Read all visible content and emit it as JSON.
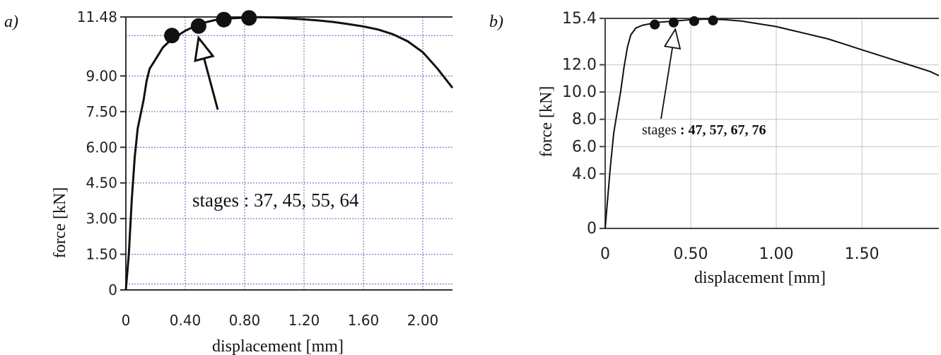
{
  "chart_data": [
    {
      "panel_label": "a)",
      "type": "line",
      "xlabel": "displacement [mm]",
      "ylabel": "force [kN]",
      "xlim": [
        0,
        2.2
      ],
      "ylim": [
        0,
        11.48
      ],
      "x_ticks": [
        "0",
        "0.40",
        "0.80",
        "1.20",
        "1.60",
        "2.00"
      ],
      "x_tick_values": [
        0,
        0.4,
        0.8,
        1.2,
        1.6,
        2.0
      ],
      "y_ticks": [
        "0",
        "1.50",
        "3.00",
        "4.50",
        "6.00",
        "7.50",
        "9.00",
        "11.48"
      ],
      "y_tick_values": [
        0,
        1.5,
        3.0,
        4.5,
        6.0,
        7.5,
        9.0,
        11.48
      ],
      "grid": true,
      "series": [
        {
          "x": [
            0,
            0.02,
            0.04,
            0.06,
            0.08,
            0.1,
            0.12,
            0.14,
            0.16,
            0.2,
            0.25,
            0.3,
            0.4,
            0.5,
            0.6,
            0.7,
            0.8,
            0.9,
            1.0,
            1.1,
            1.2,
            1.3,
            1.4,
            1.5,
            1.6,
            1.7,
            1.8,
            1.9,
            2.0,
            2.1,
            2.2
          ],
          "y": [
            0,
            1.5,
            3.8,
            5.6,
            6.8,
            7.4,
            8.0,
            8.8,
            9.3,
            9.7,
            10.2,
            10.5,
            10.9,
            11.2,
            11.35,
            11.42,
            11.45,
            11.47,
            11.46,
            11.42,
            11.38,
            11.33,
            11.27,
            11.18,
            11.08,
            10.95,
            10.75,
            10.45,
            10.0,
            9.3,
            8.5
          ]
        }
      ],
      "markers": {
        "x": [
          0.31,
          0.49,
          0.66,
          0.83
        ],
        "y": [
          10.7,
          11.1,
          11.37,
          11.44
        ]
      },
      "annotation": {
        "text": "stages : 37, 45, 55, 64",
        "points_to": {
          "x": 0.49,
          "y": 10.6
        }
      }
    },
    {
      "panel_label": "b)",
      "type": "line",
      "xlabel": "displacement [mm]",
      "ylabel": "force [kN]",
      "xlim": [
        0,
        1.95
      ],
      "ylim": [
        0,
        15.4
      ],
      "x_ticks": [
        "0",
        "0.50",
        "1.00",
        "1.50"
      ],
      "x_tick_values": [
        0,
        0.5,
        1.0,
        1.5
      ],
      "y_ticks": [
        "0",
        "4.0",
        "6.0",
        "8.0",
        "10.0",
        "12.0",
        "15.4"
      ],
      "y_tick_values": [
        0,
        4.0,
        6.0,
        8.0,
        10.0,
        12.0,
        15.4
      ],
      "grid": true,
      "series": [
        {
          "x": [
            0,
            0.01,
            0.03,
            0.05,
            0.07,
            0.09,
            0.11,
            0.13,
            0.15,
            0.18,
            0.22,
            0.26,
            0.3,
            0.4,
            0.5,
            0.6,
            0.7,
            0.8,
            0.9,
            1.0,
            1.1,
            1.2,
            1.3,
            1.4,
            1.5,
            1.6,
            1.7,
            1.8,
            1.9,
            1.95
          ],
          "y": [
            0,
            1.5,
            4.5,
            7.0,
            8.5,
            10.0,
            11.8,
            13.3,
            14.2,
            14.7,
            14.9,
            15.0,
            15.1,
            15.2,
            15.3,
            15.35,
            15.3,
            15.2,
            15.0,
            14.8,
            14.5,
            14.2,
            13.9,
            13.5,
            13.1,
            12.7,
            12.3,
            11.9,
            11.5,
            11.2
          ]
        }
      ],
      "markers": {
        "x": [
          0.29,
          0.4,
          0.52,
          0.63
        ],
        "y": [
          14.95,
          15.1,
          15.2,
          15.25
        ]
      },
      "annotation": {
        "text_prefix": "stages",
        "text_values": ": 47, 57, 67, 76",
        "points_to": {
          "x": 0.41,
          "y": 14.6
        }
      }
    }
  ]
}
